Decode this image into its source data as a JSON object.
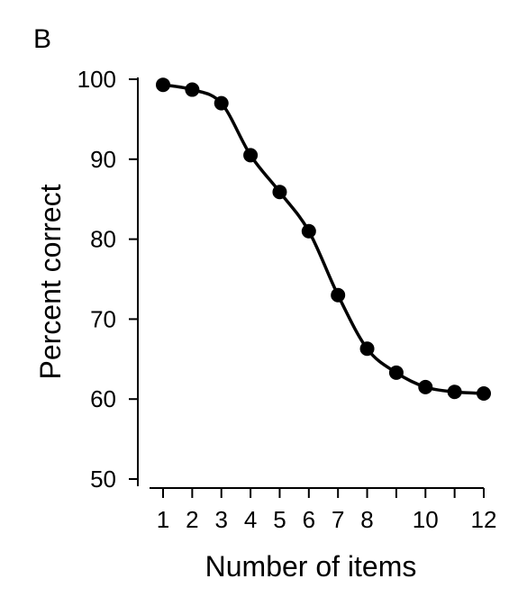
{
  "panel_label": "B",
  "chart_data": {
    "type": "line",
    "xlabel": "Number of items",
    "ylabel": "Percent correct",
    "ylim": [
      50,
      100
    ],
    "xlim": [
      1,
      12
    ],
    "x_ticks": [
      1,
      2,
      3,
      4,
      5,
      6,
      7,
      8,
      9,
      10,
      11,
      12
    ],
    "x_tick_labels": [
      "1",
      "2",
      "3",
      "4",
      "5",
      "6",
      "7",
      "8",
      "",
      "10",
      "",
      "12"
    ],
    "y_ticks": [
      50,
      60,
      70,
      80,
      90,
      100
    ],
    "y_tick_labels": [
      "50",
      "60",
      "70",
      "80",
      "90",
      "100"
    ],
    "grid": false,
    "series": [
      {
        "x": [
          1,
          2,
          3,
          4,
          5,
          6,
          7,
          8,
          9,
          10,
          11,
          12
        ],
        "values": [
          99.3,
          98.7,
          97.0,
          90.5,
          85.9,
          81.0,
          73.0,
          66.3,
          63.3,
          61.5,
          60.9,
          60.7
        ]
      }
    ],
    "colors": {
      "line": "#000000",
      "marker": "#000000",
      "axis": "#000000"
    }
  }
}
